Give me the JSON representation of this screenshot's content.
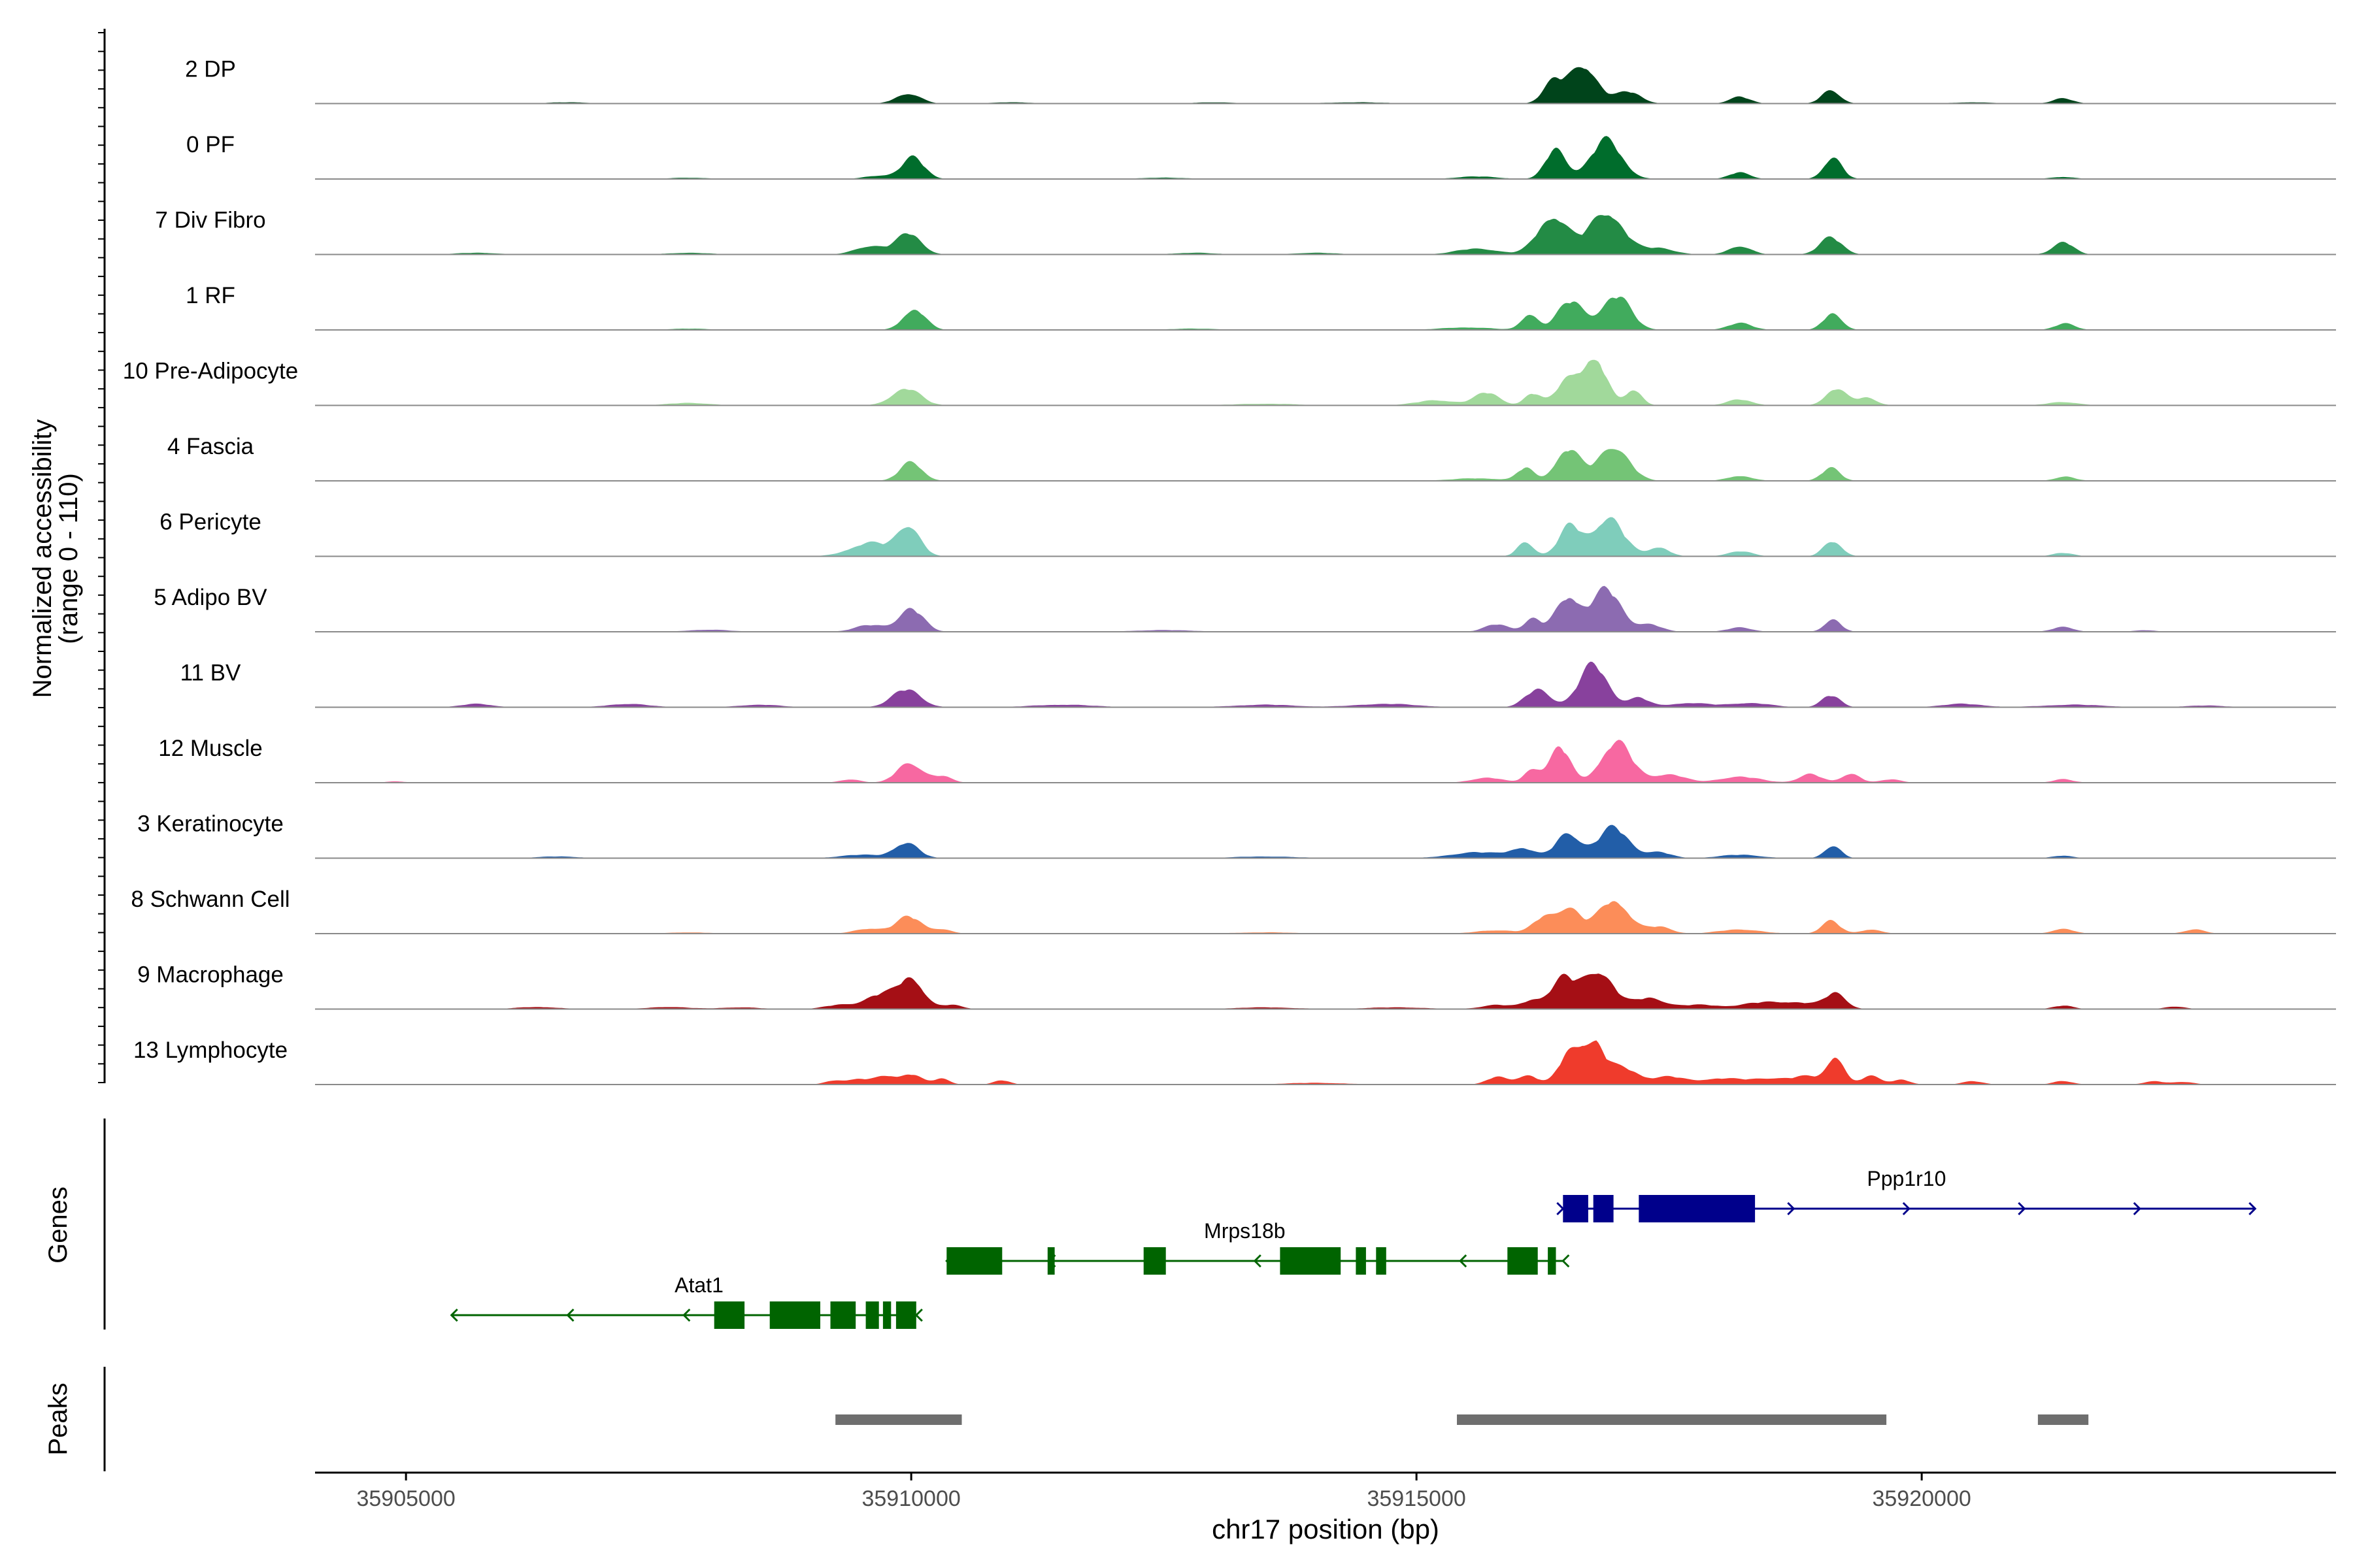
{
  "chart_data": {
    "type": "area",
    "title": "",
    "xlabel": "chr17 position (bp)",
    "ylabel_line1": "Normalized accessibility",
    "ylabel_line2": "(range 0 - 110)",
    "yrange": [
      0,
      110
    ],
    "xlim": [
      35904100,
      35924100
    ],
    "xticks": [
      35905000,
      35910000,
      35915000,
      35920000
    ],
    "xtick_labels": [
      "35905000",
      "35910000",
      "35915000",
      "35920000"
    ],
    "tracks": [
      {
        "name": "2 DP",
        "color": "#00441b",
        "peaks": [
          [
            35909970,
            24,
            120
          ],
          [
            35916350,
            48,
            100
          ],
          [
            35916650,
            90,
            140
          ],
          [
            35917100,
            28,
            120
          ],
          [
            35918200,
            16,
            100
          ],
          [
            35919100,
            32,
            90
          ],
          [
            35921400,
            12,
            100
          ],
          [
            35906600,
            3,
            200
          ],
          [
            35911000,
            3,
            200
          ],
          [
            35913000,
            3,
            200
          ],
          [
            35914400,
            3,
            300
          ],
          [
            35920500,
            3,
            200
          ]
        ]
      },
      {
        "name": "0 PF",
        "color": "#006d2c",
        "peaks": [
          [
            35910020,
            50,
            110
          ],
          [
            35916380,
            72,
            100
          ],
          [
            35916880,
            92,
            150
          ],
          [
            35918200,
            16,
            100
          ],
          [
            35919120,
            50,
            90
          ],
          [
            35909700,
            8,
            150
          ],
          [
            35915600,
            6,
            200
          ],
          [
            35907800,
            3,
            200
          ],
          [
            35912500,
            3,
            250
          ],
          [
            35921400,
            5,
            120
          ]
        ]
      },
      {
        "name": "7 Div Fibro",
        "color": "#238b45",
        "peaks": [
          [
            35909980,
            50,
            120
          ],
          [
            35909600,
            20,
            150
          ],
          [
            35916350,
            90,
            150
          ],
          [
            35916880,
            100,
            170
          ],
          [
            35917400,
            15,
            150
          ],
          [
            35918200,
            20,
            110
          ],
          [
            35919100,
            40,
            110
          ],
          [
            35921400,
            30,
            100
          ],
          [
            35915600,
            14,
            200
          ],
          [
            35905700,
            4,
            200
          ],
          [
            35907800,
            4,
            200
          ],
          [
            35912800,
            4,
            200
          ],
          [
            35914000,
            4,
            200
          ]
        ]
      },
      {
        "name": "1 RF",
        "color": "#41ab5d",
        "peaks": [
          [
            35910030,
            50,
            110
          ],
          [
            35916120,
            38,
            80
          ],
          [
            35916530,
            68,
            130
          ],
          [
            35916980,
            80,
            140
          ],
          [
            35918200,
            16,
            120
          ],
          [
            35919120,
            40,
            90
          ],
          [
            35921420,
            15,
            100
          ],
          [
            35915500,
            6,
            250
          ],
          [
            35907800,
            3,
            200
          ],
          [
            35912800,
            3,
            250
          ]
        ]
      },
      {
        "name": "10 Pre-Adipocyte",
        "color": "#a1d99b",
        "peaks": [
          [
            35909950,
            40,
            140
          ],
          [
            35915700,
            30,
            120
          ],
          [
            35916150,
            28,
            80
          ],
          [
            35916520,
            70,
            120
          ],
          [
            35916780,
            100,
            110
          ],
          [
            35917150,
            38,
            80
          ],
          [
            35918200,
            14,
            120
          ],
          [
            35919150,
            40,
            100
          ],
          [
            35919450,
            18,
            100
          ],
          [
            35921400,
            8,
            150
          ],
          [
            35915200,
            12,
            200
          ],
          [
            35907800,
            6,
            200
          ],
          [
            35913500,
            4,
            300
          ]
        ]
      },
      {
        "name": "4 Fascia",
        "color": "#74c476",
        "peaks": [
          [
            35910000,
            44,
            110
          ],
          [
            35916080,
            30,
            80
          ],
          [
            35916500,
            75,
            120
          ],
          [
            35916950,
            82,
            150
          ],
          [
            35918200,
            12,
            120
          ],
          [
            35919100,
            30,
            90
          ],
          [
            35921420,
            10,
            100
          ],
          [
            35915600,
            6,
            250
          ]
        ]
      },
      {
        "name": "6 Pericyte",
        "color": "#7fcdbb",
        "peaks": [
          [
            35909980,
            70,
            110
          ],
          [
            35909600,
            32,
            200
          ],
          [
            35916080,
            34,
            80
          ],
          [
            35916520,
            70,
            110
          ],
          [
            35916900,
            90,
            150
          ],
          [
            35917400,
            22,
            100
          ],
          [
            35918200,
            12,
            120
          ],
          [
            35919120,
            36,
            90
          ],
          [
            35921400,
            8,
            100
          ]
        ]
      },
      {
        "name": "5 Adipo BV",
        "color": "#8c6bb1",
        "peaks": [
          [
            35910000,
            54,
            120
          ],
          [
            35909600,
            16,
            150
          ],
          [
            35915800,
            18,
            120
          ],
          [
            35916150,
            30,
            80
          ],
          [
            35916500,
            82,
            120
          ],
          [
            35916880,
            100,
            140
          ],
          [
            35917300,
            18,
            120
          ],
          [
            35918200,
            10,
            120
          ],
          [
            35919120,
            30,
            80
          ],
          [
            35921400,
            12,
            100
          ],
          [
            35908000,
            5,
            200
          ],
          [
            35922200,
            4,
            100
          ],
          [
            35912500,
            4,
            300
          ]
        ]
      },
      {
        "name": "11 BV",
        "color": "#88419d",
        "peaks": [
          [
            35909950,
            42,
            140
          ],
          [
            35916200,
            42,
            120
          ],
          [
            35916750,
            100,
            140
          ],
          [
            35917200,
            22,
            100
          ],
          [
            35917700,
            10,
            200
          ],
          [
            35918300,
            10,
            200
          ],
          [
            35919100,
            28,
            90
          ],
          [
            35920400,
            8,
            200
          ],
          [
            35905700,
            8,
            150
          ],
          [
            35907200,
            8,
            200
          ],
          [
            35908500,
            6,
            200
          ],
          [
            35911500,
            6,
            300
          ],
          [
            35913500,
            6,
            300
          ],
          [
            35914700,
            8,
            300
          ],
          [
            35921500,
            6,
            300
          ],
          [
            35922800,
            4,
            200
          ]
        ]
      },
      {
        "name": "12 Muscle",
        "color": "#f768a1",
        "peaks": [
          [
            35909980,
            48,
            120
          ],
          [
            35910300,
            15,
            100
          ],
          [
            35909400,
            8,
            100
          ],
          [
            35915700,
            12,
            150
          ],
          [
            35916150,
            32,
            80
          ],
          [
            35916420,
            84,
            100
          ],
          [
            35916980,
            96,
            150
          ],
          [
            35917500,
            20,
            150
          ],
          [
            35918200,
            14,
            200
          ],
          [
            35918900,
            20,
            110
          ],
          [
            35919300,
            22,
            90
          ],
          [
            35919700,
            8,
            100
          ],
          [
            35921400,
            8,
            100
          ],
          [
            35904900,
            3,
            100
          ]
        ]
      },
      {
        "name": "3 Keratinocyte",
        "color": "#225ea8",
        "peaks": [
          [
            35909950,
            36,
            120
          ],
          [
            35909500,
            8,
            200
          ],
          [
            35915600,
            14,
            250
          ],
          [
            35916050,
            22,
            120
          ],
          [
            35916500,
            58,
            120
          ],
          [
            35916950,
            72,
            150
          ],
          [
            35917400,
            14,
            120
          ],
          [
            35918200,
            8,
            200
          ],
          [
            35919120,
            30,
            80
          ],
          [
            35921400,
            6,
            100
          ],
          [
            35906500,
            4,
            200
          ],
          [
            35913500,
            4,
            300
          ]
        ]
      },
      {
        "name": "8 Schwann Cell",
        "color": "#fc8d59",
        "peaks": [
          [
            35909980,
            40,
            120
          ],
          [
            35909600,
            12,
            150
          ],
          [
            35910300,
            10,
            100
          ],
          [
            35915800,
            8,
            200
          ],
          [
            35916250,
            34,
            100
          ],
          [
            35916500,
            60,
            120
          ],
          [
            35916950,
            80,
            150
          ],
          [
            35917400,
            16,
            120
          ],
          [
            35918200,
            10,
            200
          ],
          [
            35919100,
            30,
            90
          ],
          [
            35919500,
            10,
            100
          ],
          [
            35921400,
            12,
            100
          ],
          [
            35922700,
            10,
            100
          ],
          [
            35907800,
            3,
            200
          ],
          [
            35913500,
            3,
            300
          ]
        ]
      },
      {
        "name": "9 Macrophage",
        "color": "#a50f15",
        "peaks": [
          [
            35910000,
            72,
            120
          ],
          [
            35909700,
            34,
            150
          ],
          [
            35909300,
            10,
            150
          ],
          [
            35910400,
            10,
            100
          ],
          [
            35915800,
            10,
            150
          ],
          [
            35916150,
            20,
            100
          ],
          [
            35916450,
            70,
            120
          ],
          [
            35916800,
            90,
            150
          ],
          [
            35917300,
            26,
            150
          ],
          [
            35917800,
            10,
            200
          ],
          [
            35918400,
            14,
            200
          ],
          [
            35918800,
            14,
            200
          ],
          [
            35919150,
            36,
            100
          ],
          [
            35921400,
            8,
            100
          ],
          [
            35922500,
            6,
            100
          ],
          [
            35906300,
            5,
            200
          ],
          [
            35907600,
            5,
            200
          ],
          [
            35908300,
            4,
            200
          ],
          [
            35913500,
            4,
            300
          ],
          [
            35914800,
            4,
            300
          ]
        ]
      },
      {
        "name": "13 Lymphocyte",
        "color": "#ef3b2c",
        "peaks": [
          [
            35909250,
            10,
            100
          ],
          [
            35909500,
            12,
            100
          ],
          [
            35909750,
            20,
            100
          ],
          [
            35910000,
            24,
            100
          ],
          [
            35910300,
            14,
            80
          ],
          [
            35910900,
            10,
            80
          ],
          [
            35915800,
            18,
            100
          ],
          [
            35916100,
            22,
            100
          ],
          [
            35916500,
            64,
            100
          ],
          [
            35916730,
            100,
            120
          ],
          [
            35917050,
            38,
            150
          ],
          [
            35917500,
            18,
            150
          ],
          [
            35918000,
            14,
            200
          ],
          [
            35918500,
            14,
            200
          ],
          [
            35918900,
            18,
            150
          ],
          [
            35919150,
            64,
            80
          ],
          [
            35919500,
            20,
            100
          ],
          [
            35919800,
            12,
            80
          ],
          [
            35920500,
            8,
            100
          ],
          [
            35921400,
            8,
            100
          ],
          [
            35922300,
            8,
            100
          ],
          [
            35922600,
            6,
            100
          ],
          [
            35914000,
            4,
            300
          ]
        ]
      }
    ],
    "genes": [
      {
        "name": "Atat1",
        "strand": "-",
        "start": 35905450,
        "end": 35910050,
        "exons": [
          [
            35908050,
            35908350
          ],
          [
            35908600,
            35909100
          ],
          [
            35909200,
            35909450
          ],
          [
            35909550,
            35909680
          ],
          [
            35909720,
            35909800
          ],
          [
            35909850,
            35910050
          ]
        ]
      },
      {
        "name": "Mrps18b",
        "strand": "-",
        "start": 35910350,
        "end": 35916450,
        "exons": [
          [
            35910350,
            35910900
          ],
          [
            35911350,
            35911420
          ],
          [
            35912300,
            35912520
          ],
          [
            35913650,
            35914250
          ],
          [
            35914400,
            35914500
          ],
          [
            35914600,
            35914700
          ],
          [
            35915900,
            35916200
          ],
          [
            35916300,
            35916380
          ]
        ]
      },
      {
        "name": "Ppp1r10",
        "strand": "+",
        "start": 35916450,
        "end": 35923300,
        "exons": [
          [
            35916450,
            35916700
          ],
          [
            35916750,
            35916950
          ],
          [
            35917200,
            35918350
          ]
        ]
      }
    ],
    "peak_regions": [
      [
        35909250,
        35910500
      ],
      [
        35915400,
        35919650
      ],
      [
        35921150,
        35921650
      ]
    ],
    "panel_labels": {
      "genes": "Genes",
      "peaks": "Peaks"
    }
  }
}
